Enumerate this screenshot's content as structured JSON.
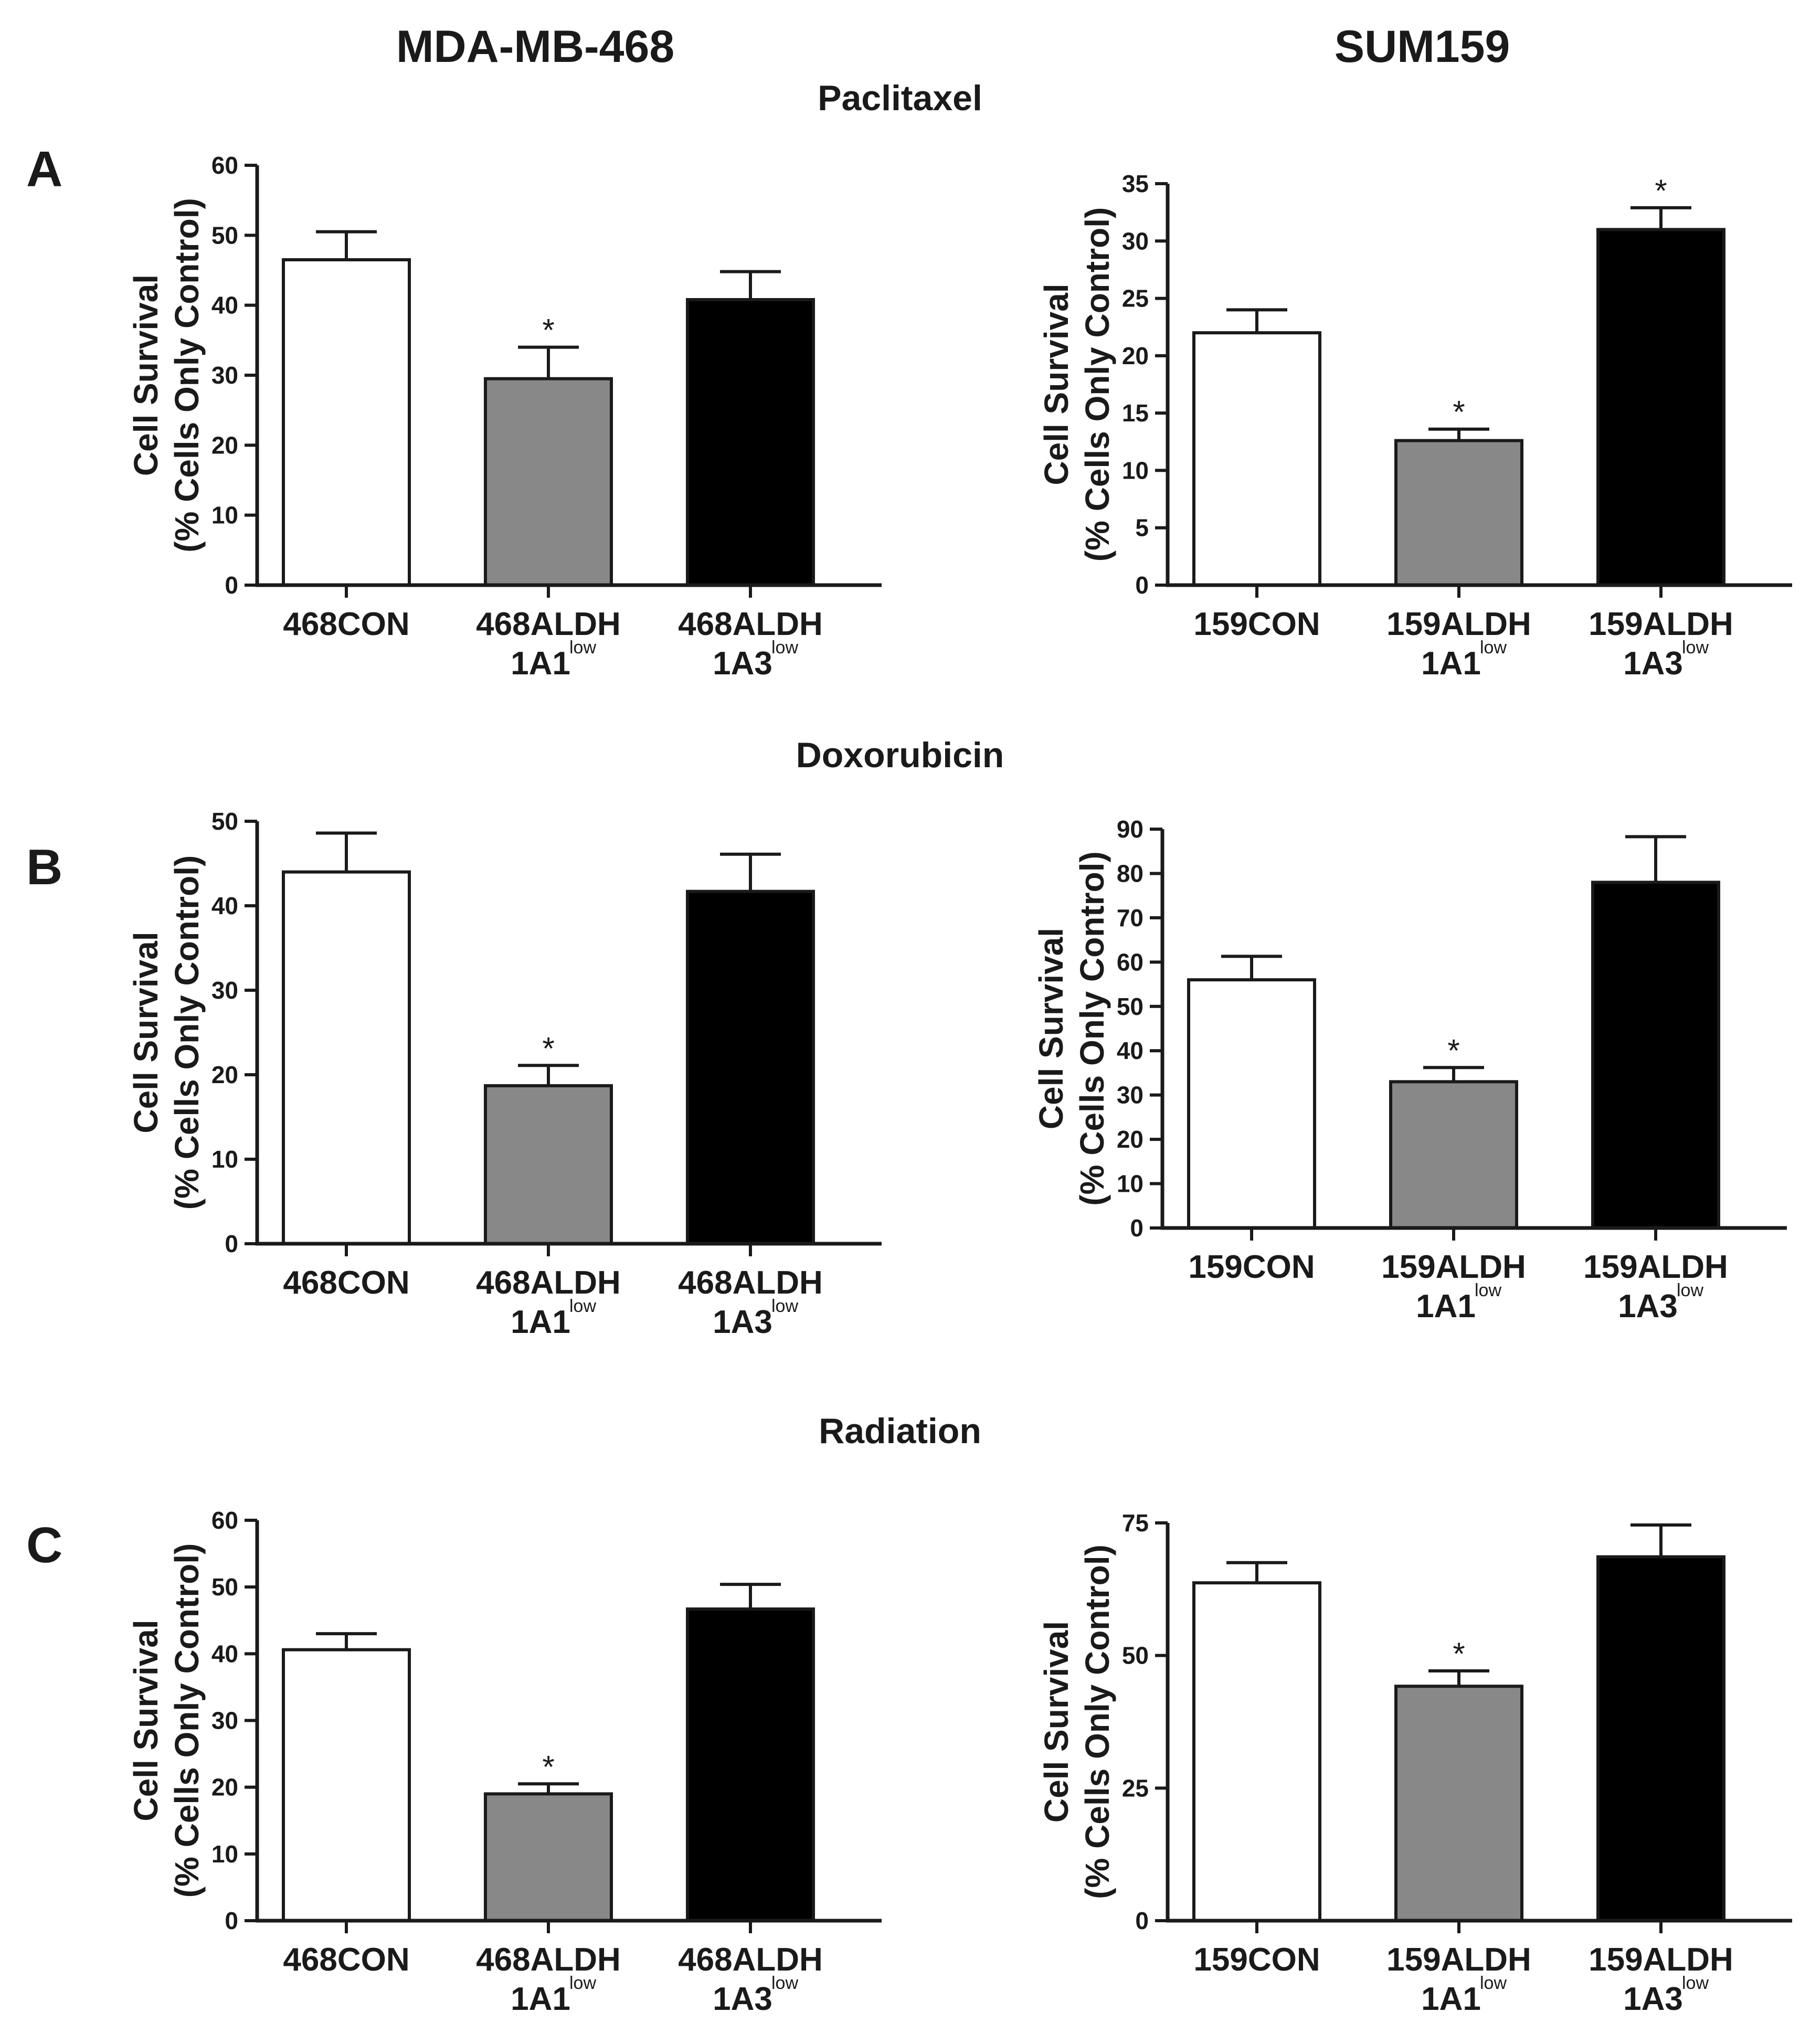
{
  "column_titles": {
    "left": "MDA-MB-468",
    "right": "SUM159"
  },
  "row_titles": {
    "a": "Paclitaxel",
    "b": "Doxorubicin",
    "c": "Radiation"
  },
  "panel_letters": {
    "a": "A",
    "b": "B",
    "c": "C"
  },
  "colors": {
    "white_bar": "#ffffff",
    "gray_bar": "#888888",
    "black_bar": "#000000",
    "axis": "#1a1a1a"
  },
  "chart_data": [
    {
      "id": "A-468",
      "type": "bar",
      "title": "",
      "ylabel": [
        "Cell Survival",
        "(% Cells Only Control)"
      ],
      "ylim": [
        0,
        60
      ],
      "yticks": [
        0,
        10,
        20,
        30,
        40,
        50,
        60
      ],
      "categories": [
        {
          "main": "468CON",
          "sub": "",
          "sup": ""
        },
        {
          "main": "468ALDH",
          "sub": "1A1",
          "sup": "low"
        },
        {
          "main": "468ALDH",
          "sub": "1A3",
          "sup": "low"
        }
      ],
      "values": [
        46.5,
        29.5,
        40.8
      ],
      "errors": [
        4.0,
        4.5,
        4.0
      ],
      "fills": [
        "white",
        "gray",
        "black"
      ],
      "significance": [
        "",
        "*",
        ""
      ]
    },
    {
      "id": "A-159",
      "type": "bar",
      "title": "",
      "ylabel": [
        "Cell Survival",
        "(% Cells Only Control)"
      ],
      "ylim": [
        0,
        35
      ],
      "yticks": [
        0,
        5,
        10,
        15,
        20,
        25,
        30,
        35
      ],
      "categories": [
        {
          "main": "159CON",
          "sub": "",
          "sup": ""
        },
        {
          "main": "159ALDH",
          "sub": "1A1",
          "sup": "low"
        },
        {
          "main": "159ALDH",
          "sub": "1A3",
          "sup": "low"
        }
      ],
      "values": [
        22.0,
        12.6,
        31.0
      ],
      "errors": [
        2.0,
        1.0,
        1.9
      ],
      "fills": [
        "white",
        "gray",
        "black"
      ],
      "significance": [
        "",
        "*",
        "*"
      ]
    },
    {
      "id": "B-468",
      "type": "bar",
      "title": "",
      "ylabel": [
        "Cell Survival",
        "(% Cells Only Control)"
      ],
      "ylim": [
        0,
        50
      ],
      "yticks": [
        0,
        10,
        20,
        30,
        40,
        50
      ],
      "categories": [
        {
          "main": "468CON",
          "sub": "",
          "sup": ""
        },
        {
          "main": "468ALDH",
          "sub": "1A1",
          "sup": "low"
        },
        {
          "main": "468ALDH",
          "sub": "1A3",
          "sup": "low"
        }
      ],
      "values": [
        44.0,
        18.7,
        41.7
      ],
      "errors": [
        4.6,
        2.4,
        4.4
      ],
      "fills": [
        "white",
        "gray",
        "black"
      ],
      "significance": [
        "",
        "*",
        ""
      ]
    },
    {
      "id": "B-159",
      "type": "bar",
      "title": "",
      "ylabel": [
        "Cell Survival",
        "(% Cells Only Control)"
      ],
      "ylim": [
        0,
        90
      ],
      "yticks": [
        0,
        10,
        20,
        30,
        40,
        50,
        60,
        70,
        80,
        90
      ],
      "categories": [
        {
          "main": "159CON",
          "sub": "",
          "sup": ""
        },
        {
          "main": "159ALDH",
          "sub": "1A1",
          "sup": "low"
        },
        {
          "main": "159ALDH",
          "sub": "1A3",
          "sup": "low"
        }
      ],
      "values": [
        56.0,
        33.0,
        78.0
      ],
      "errors": [
        5.3,
        3.2,
        10.3
      ],
      "fills": [
        "white",
        "gray",
        "black"
      ],
      "significance": [
        "",
        "*",
        ""
      ]
    },
    {
      "id": "C-468",
      "type": "bar",
      "title": "",
      "ylabel": [
        "Cell Survival",
        "(% Cells Only Control)"
      ],
      "ylim": [
        0,
        60
      ],
      "yticks": [
        0,
        10,
        20,
        30,
        40,
        50,
        60
      ],
      "categories": [
        {
          "main": "468CON",
          "sub": "",
          "sup": ""
        },
        {
          "main": "468ALDH",
          "sub": "1A1",
          "sup": "low"
        },
        {
          "main": "468ALDH",
          "sub": "1A3",
          "sup": "low"
        }
      ],
      "values": [
        40.6,
        19.0,
        46.7
      ],
      "errors": [
        2.4,
        1.5,
        3.7
      ],
      "fills": [
        "white",
        "gray",
        "black"
      ],
      "significance": [
        "",
        "*",
        ""
      ]
    },
    {
      "id": "C-159",
      "type": "bar",
      "title": "",
      "ylabel": [
        "Cell Survival",
        "(% Cells Only Control)"
      ],
      "ylim": [
        0,
        75
      ],
      "yticks": [
        0,
        25,
        50,
        75
      ],
      "categories": [
        {
          "main": "159CON",
          "sub": "",
          "sup": ""
        },
        {
          "main": "159ALDH",
          "sub": "1A1",
          "sup": "low"
        },
        {
          "main": "159ALDH",
          "sub": "1A3",
          "sup": "low"
        }
      ],
      "values": [
        63.7,
        44.2,
        68.6
      ],
      "errors": [
        3.8,
        2.9,
        6.0
      ],
      "fills": [
        "white",
        "gray",
        "black"
      ],
      "significance": [
        "",
        "*",
        ""
      ]
    }
  ]
}
